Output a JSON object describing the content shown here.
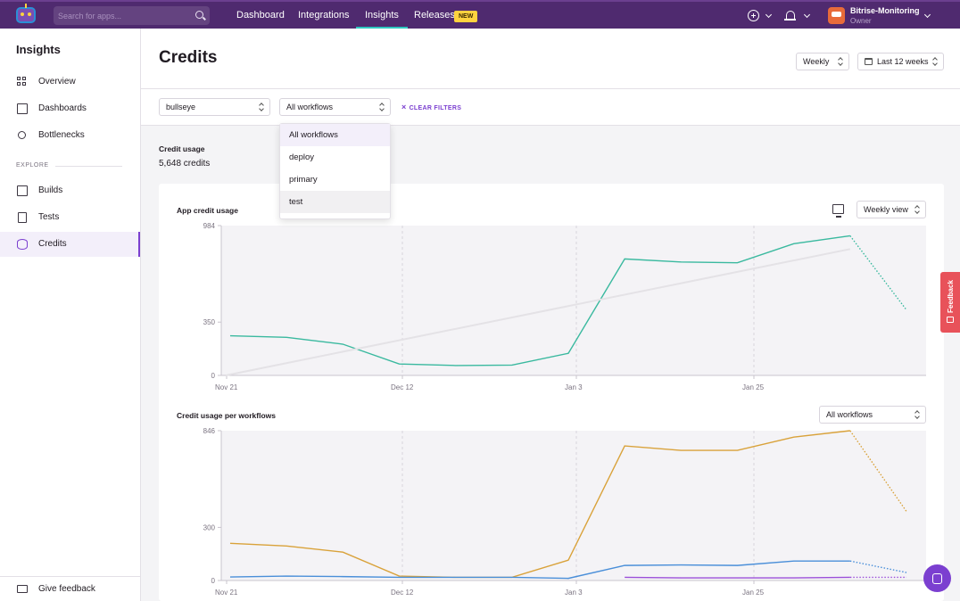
{
  "topnav": {
    "search_placeholder": "Search for apps...",
    "tabs": [
      {
        "label": "Dashboard",
        "active": false
      },
      {
        "label": "Integrations",
        "active": false
      },
      {
        "label": "Insights",
        "active": true
      },
      {
        "label": "Releases",
        "active": false,
        "badge": "NEW"
      }
    ],
    "account": {
      "name": "Bitrise-Monitoring",
      "role": "Owner"
    }
  },
  "sidebar": {
    "title": "Insights",
    "items": [
      {
        "label": "Overview",
        "icon": "grid-icon"
      },
      {
        "label": "Dashboards",
        "icon": "chart-monitor-icon"
      },
      {
        "label": "Bottlenecks",
        "icon": "lightbulb-icon"
      }
    ],
    "section_label": "EXPLORE",
    "explore_items": [
      {
        "label": "Builds",
        "icon": "builds-icon"
      },
      {
        "label": "Tests",
        "icon": "tests-icon"
      },
      {
        "label": "Credits",
        "icon": "database-icon",
        "active": true
      }
    ],
    "bottom_label": "Give feedback"
  },
  "header": {
    "title": "Credits",
    "period_select": "Weekly",
    "range_select": "Last 12 weeks"
  },
  "filters": {
    "app_select": "bullseye",
    "workflow_select": "All workflows",
    "clear_label": "CLEAR FILTERS",
    "workflow_options": [
      "All workflows",
      "deploy",
      "primary",
      "test"
    ]
  },
  "summary": {
    "label": "Credit usage",
    "value": "5,648 credits"
  },
  "chart1_controls": {
    "title": "App credit usage",
    "view_select": "Weekly view"
  },
  "chart2_controls": {
    "title": "Credit usage per workflows",
    "workflow_select": "All workflows"
  },
  "chart_data": [
    {
      "type": "line",
      "title": "App credit usage",
      "x_tick_labels": [
        "Nov 21",
        "Dec 12",
        "Jan 3",
        "Jan 25"
      ],
      "y_tick_labels": [
        "0",
        "350",
        "984"
      ],
      "ylim": [
        0,
        984
      ],
      "series": [
        {
          "color": "#3ab99f",
          "values": [
            260,
            250,
            205,
            75,
            65,
            68,
            145,
            765,
            745,
            740,
            865,
            917,
            430
          ],
          "last_segment_dotted": true
        },
        {
          "color": "#e4e2e6",
          "trend": true,
          "values": [
            0,
            830
          ]
        }
      ],
      "grid": "vertical-dashed"
    },
    {
      "type": "line",
      "title": "Credit usage per workflows",
      "x_tick_labels": [
        "Nov 21",
        "Dec 12",
        "Jan 3",
        "Jan 25"
      ],
      "y_tick_labels": [
        "0",
        "300",
        "846"
      ],
      "ylim": [
        0,
        846
      ],
      "series": [
        {
          "color": "#d9a23a",
          "values": [
            210,
            195,
            160,
            25,
            18,
            18,
            115,
            760,
            735,
            735,
            810,
            846,
            390
          ],
          "last_segment_dotted": true
        },
        {
          "color": "#4a8fd9",
          "values": [
            20,
            25,
            22,
            18,
            18,
            18,
            12,
            85,
            88,
            85,
            110,
            110,
            45
          ],
          "last_segment_dotted": true
        },
        {
          "color": "#9b4fd9",
          "values": [
            null,
            null,
            null,
            null,
            null,
            null,
            null,
            18,
            15,
            15,
            15,
            18,
            18
          ],
          "last_segment_dotted": true
        }
      ],
      "grid": "vertical-dashed"
    }
  ],
  "colors": {
    "brand": "#4f2a6f",
    "accent": "#7b3fd0",
    "feedback": "#e8525a"
  },
  "feedback_tab": "Feedback"
}
